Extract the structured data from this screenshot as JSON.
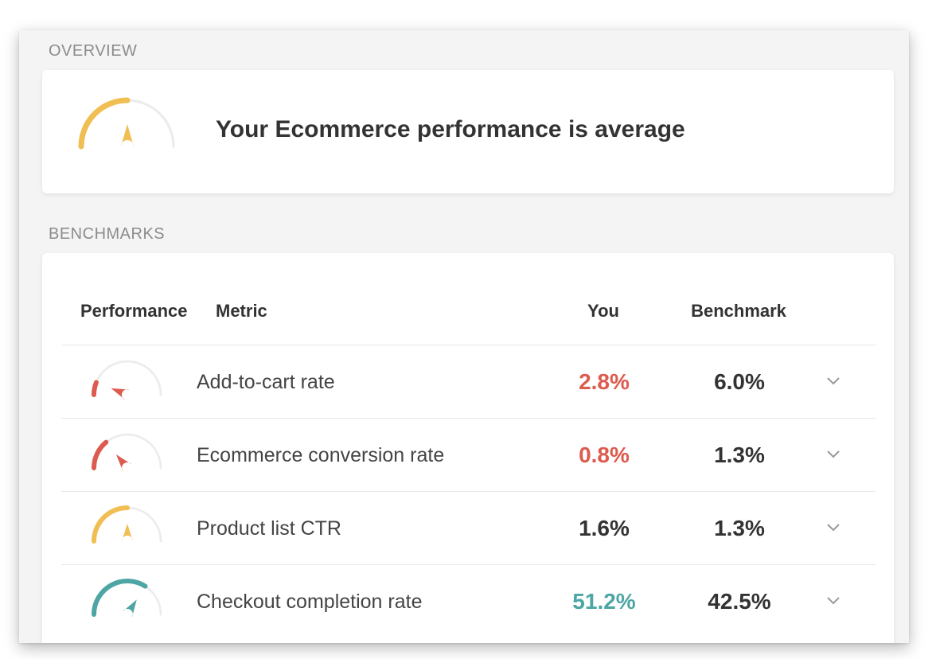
{
  "overview": {
    "label": "OVERVIEW",
    "message": "Your Ecommerce performance is average",
    "gauge": {
      "level": 0.5,
      "color": "#f0be52",
      "icon": "gauge-icon"
    }
  },
  "benchmarks": {
    "label": "BENCHMARKS",
    "headers": {
      "performance": "Performance",
      "metric": "Metric",
      "you": "You",
      "benchmark": "Benchmark"
    },
    "rows": [
      {
        "metric": "Add-to-cart rate",
        "you": "2.8%",
        "benchmark": "6.0%",
        "level": 0.12,
        "color": "#dd5b4e",
        "you_color": "#dd5b4e"
      },
      {
        "metric": "Ecommerce conversion rate",
        "you": "0.8%",
        "benchmark": "1.3%",
        "level": 0.28,
        "color": "#dd5b4e",
        "you_color": "#dd5b4e"
      },
      {
        "metric": "Product list CTR",
        "you": "1.6%",
        "benchmark": "1.3%",
        "level": 0.5,
        "color": "#f0be52",
        "you_color": "#333333"
      },
      {
        "metric": "Checkout completion rate",
        "you": "51.2%",
        "benchmark": "42.5%",
        "level": 0.68,
        "color": "#4da6a3",
        "you_color": "#4da6a3"
      }
    ],
    "expand_icon": "chevron-down-icon"
  }
}
